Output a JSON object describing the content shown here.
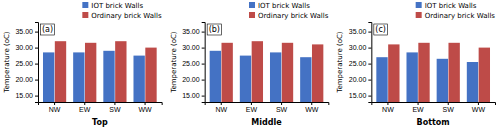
{
  "chart_data": [
    {
      "type": "bar",
      "xlabel": "Top",
      "ylabel": "Temperature (oC)",
      "annotations": [
        "(a)"
      ],
      "categories": [
        "NW",
        "EW",
        "SW",
        "WW"
      ],
      "series": [
        {
          "name": "IOT brick Walls",
          "color": "#4472C4",
          "values": [
            28.5,
            28.5,
            29.0,
            27.5
          ]
        },
        {
          "name": "Ordinary brick Walls",
          "color": "#BE4B48",
          "values": [
            32.0,
            31.5,
            32.0,
            30.0
          ]
        }
      ],
      "ylim": [
        13.0,
        38.0
      ],
      "yticks": [
        {
          "value": 15,
          "label": "15.00"
        },
        {
          "value": 20,
          "label": "20.00"
        },
        {
          "value": 25,
          "label": "25.00"
        },
        {
          "value": 30,
          "label": "30.00"
        },
        {
          "value": 35,
          "label": "35.00"
        }
      ],
      "grid": false
    },
    {
      "type": "bar",
      "xlabel": "Middle",
      "ylabel": "Temperature (oC)",
      "annotations": [
        "(b)"
      ],
      "categories": [
        "NW",
        "EW",
        "SW",
        "WW"
      ],
      "series": [
        {
          "name": "IOT brick Walls",
          "color": "#4472C4",
          "values": [
            29.0,
            27.5,
            28.5,
            27.0
          ]
        },
        {
          "name": "Ordinary brick Walls",
          "color": "#BE4B48",
          "values": [
            31.5,
            32.0,
            31.5,
            31.0
          ]
        }
      ],
      "ylim": [
        13.0,
        38.0
      ],
      "yticks": [
        {
          "value": 15,
          "label": "15.00"
        },
        {
          "value": 20,
          "label": "20.00"
        },
        {
          "value": 25,
          "label": "25.00"
        },
        {
          "value": 30,
          "label": "30.00"
        },
        {
          "value": 35,
          "label": "35.00"
        }
      ],
      "grid": false
    },
    {
      "type": "bar",
      "xlabel": "Bottom",
      "ylabel": "Temperature (oC)",
      "annotations": [
        "(c)"
      ],
      "categories": [
        "NW",
        "EW",
        "SW",
        "WW"
      ],
      "series": [
        {
          "name": "IOT brick Walls",
          "color": "#4472C4",
          "values": [
            27.0,
            28.5,
            26.5,
            25.5
          ]
        },
        {
          "name": "Ordinary brick Walls",
          "color": "#BE4B48",
          "values": [
            31.0,
            31.5,
            31.5,
            30.0
          ]
        }
      ],
      "ylim": [
        13.0,
        38.0
      ],
      "yticks": [
        {
          "value": 15,
          "label": "15.00"
        },
        {
          "value": 20,
          "label": "20.00"
        },
        {
          "value": 25,
          "label": "25.00"
        },
        {
          "value": 30,
          "label": "30.00"
        },
        {
          "value": 35,
          "label": "35.00"
        }
      ],
      "grid": false
    }
  ]
}
